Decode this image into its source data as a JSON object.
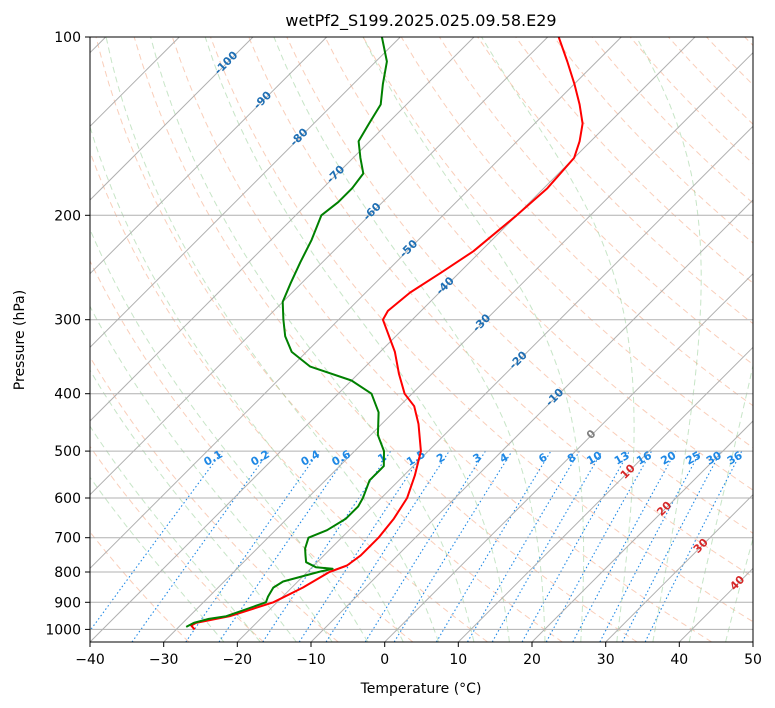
{
  "chart_data": {
    "type": "line",
    "title": "wetPf2_S199.2025.025.09.58.E29",
    "xlabel": "Temperature (°C)",
    "ylabel": "Pressure (hPa)",
    "xlim": [
      -40,
      50
    ],
    "ylim": [
      1050,
      100
    ],
    "y_scale": "log",
    "skew": true,
    "grid": true,
    "x_ticks": [
      -40,
      -30,
      -20,
      -10,
      0,
      10,
      20,
      30,
      40,
      50
    ],
    "x_tick_labels": [
      "−40",
      "−30",
      "−20",
      "−10",
      "0",
      "10",
      "20",
      "30",
      "40",
      "50"
    ],
    "y_ticks": [
      1000,
      900,
      800,
      700,
      600,
      500,
      400,
      300,
      200,
      100
    ],
    "y_tick_labels": [
      "1000",
      "900",
      "800",
      "700",
      "600",
      "500",
      "400",
      "300",
      "200",
      "100"
    ],
    "series": [
      {
        "color": "#ff0000",
        "points": [
          [
            1000,
            -27.5
          ],
          [
            985,
            -28.5
          ],
          [
            975,
            -28.2
          ],
          [
            950,
            -24.5
          ],
          [
            900,
            -20.5
          ],
          [
            850,
            -18.5
          ],
          [
            800,
            -17.0
          ],
          [
            780,
            -15.5
          ],
          [
            750,
            -15.0
          ],
          [
            700,
            -15.0
          ],
          [
            650,
            -15.5
          ],
          [
            600,
            -16.5
          ],
          [
            550,
            -18.5
          ],
          [
            500,
            -21.0
          ],
          [
            450,
            -25.0
          ],
          [
            420,
            -28.0
          ],
          [
            400,
            -31.0
          ],
          [
            370,
            -34.5
          ],
          [
            340,
            -38.0
          ],
          [
            300,
            -44.0
          ],
          [
            290,
            -44.5
          ],
          [
            270,
            -44.0
          ],
          [
            250,
            -42.5
          ],
          [
            230,
            -41.0
          ],
          [
            200,
            -40.0
          ],
          [
            180,
            -39.5
          ],
          [
            160,
            -40.0
          ],
          [
            150,
            -41.5
          ],
          [
            140,
            -43.5
          ],
          [
            130,
            -46.5
          ],
          [
            120,
            -50.0
          ],
          [
            110,
            -54.0
          ],
          [
            100,
            -58.5
          ]
        ]
      },
      {
        "color": "#008000",
        "points": [
          [
            990,
            -29.0
          ],
          [
            975,
            -28.5
          ],
          [
            960,
            -27.0
          ],
          [
            950,
            -25.0
          ],
          [
            900,
            -21.5
          ],
          [
            880,
            -22.0
          ],
          [
            850,
            -22.5
          ],
          [
            830,
            -22.0
          ],
          [
            800,
            -18.5
          ],
          [
            790,
            -17.0
          ],
          [
            785,
            -19.5
          ],
          [
            770,
            -21.5
          ],
          [
            750,
            -22.5
          ],
          [
            730,
            -23.5
          ],
          [
            700,
            -24.5
          ],
          [
            680,
            -23.0
          ],
          [
            650,
            -22.0
          ],
          [
            620,
            -22.0
          ],
          [
            600,
            -22.5
          ],
          [
            560,
            -24.0
          ],
          [
            530,
            -24.0
          ],
          [
            500,
            -26.0
          ],
          [
            470,
            -29.0
          ],
          [
            430,
            -32.0
          ],
          [
            400,
            -35.5
          ],
          [
            380,
            -40.0
          ],
          [
            360,
            -47.5
          ],
          [
            340,
            -52.0
          ],
          [
            320,
            -55.0
          ],
          [
            300,
            -57.5
          ],
          [
            280,
            -60.0
          ],
          [
            260,
            -61.5
          ],
          [
            240,
            -63.0
          ],
          [
            220,
            -64.5
          ],
          [
            200,
            -66.5
          ],
          [
            190,
            -66.0
          ],
          [
            180,
            -66.0
          ],
          [
            170,
            -66.5
          ],
          [
            160,
            -69.0
          ],
          [
            150,
            -71.5
          ],
          [
            140,
            -72.5
          ],
          [
            130,
            -73.5
          ],
          [
            120,
            -76.0
          ],
          [
            110,
            -78.5
          ],
          [
            100,
            -82.5
          ]
        ]
      }
    ],
    "isotherm_labels": [
      "-100",
      "-90",
      "-80",
      "-70",
      "-60",
      "-50",
      "-40",
      "-30",
      "-20",
      "-10",
      "0",
      "10",
      "20",
      "30",
      "40"
    ],
    "mixing_ratio_labels": [
      "0.1",
      "0.2",
      "0.4",
      "0.6",
      "1",
      "1.5",
      "2",
      "3",
      "4",
      "6",
      "8",
      "10",
      "13",
      "16",
      "20",
      "25",
      "30",
      "36"
    ]
  }
}
